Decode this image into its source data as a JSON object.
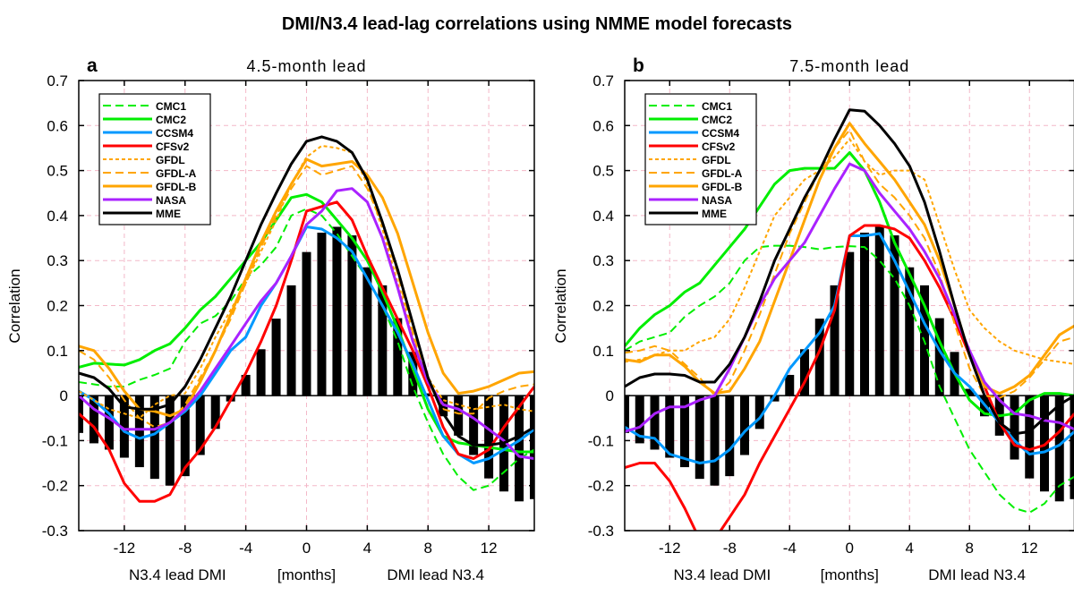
{
  "title": "DMI/N3.4 lead-lag correlations using NMME model forecasts",
  "chart_data": [
    {
      "type": "line",
      "panel_label": "a",
      "subtitle": "4.5-month lead",
      "ylabel": "Correlation",
      "xlabel_left": "N3.4 lead DMI",
      "xlabel_center": "[months]",
      "xlabel_right": "DMI lead N3.4",
      "xlim": [
        -15,
        15
      ],
      "ylim": [
        -0.3,
        0.7
      ],
      "xticks": [
        -12,
        -8,
        -4,
        0,
        4,
        8,
        12
      ],
      "yticks": [
        -0.3,
        -0.2,
        -0.1,
        0,
        0.1,
        0.2,
        0.3,
        0.4,
        0.5,
        0.6,
        0.7
      ],
      "ytick_labels": [
        "-0.3",
        "-0.2",
        "-0.1",
        "0",
        "0.1",
        "0.2",
        "0.3",
        "0.4",
        "0.5",
        "0.6",
        "0.7"
      ],
      "grid": true,
      "legend_position": "top-left",
      "x": [
        -15,
        -14,
        -13,
        -12,
        -11,
        -10,
        -9,
        -8,
        -7,
        -6,
        -5,
        -4,
        -3,
        -2,
        -1,
        0,
        1,
        2,
        3,
        4,
        5,
        6,
        7,
        8,
        9,
        10,
        11,
        12,
        13,
        14,
        15
      ],
      "bars": {
        "color": "#000000",
        "values": [
          -0.083,
          -0.106,
          -0.12,
          -0.138,
          -0.159,
          -0.185,
          -0.2,
          -0.179,
          -0.132,
          -0.074,
          -0.013,
          0.046,
          0.103,
          0.171,
          0.245,
          0.319,
          0.362,
          0.375,
          0.356,
          0.285,
          0.245,
          0.172,
          0.097,
          0.005,
          -0.046,
          -0.089,
          -0.132,
          -0.184,
          -0.213,
          -0.235,
          -0.23
        ]
      },
      "series": [
        {
          "name": "CMC1",
          "color": "#00ee00",
          "style": "dashed",
          "values": [
            0.03,
            0.025,
            0.02,
            0.02,
            0.035,
            0.046,
            0.06,
            0.12,
            0.16,
            0.177,
            0.21,
            0.26,
            0.29,
            0.33,
            0.4,
            0.415,
            0.4,
            0.36,
            0.31,
            0.26,
            0.2,
            0.12,
            0.02,
            -0.06,
            -0.13,
            -0.18,
            -0.21,
            -0.2,
            -0.17,
            -0.14,
            -0.12
          ]
        },
        {
          "name": "CMC2",
          "color": "#00ee00",
          "style": "solid",
          "values": [
            0.063,
            0.072,
            0.07,
            0.068,
            0.08,
            0.1,
            0.115,
            0.15,
            0.19,
            0.22,
            0.26,
            0.3,
            0.34,
            0.39,
            0.44,
            0.447,
            0.43,
            0.39,
            0.35,
            0.3,
            0.23,
            0.15,
            0.06,
            -0.03,
            -0.09,
            -0.105,
            -0.11,
            -0.115,
            -0.12,
            -0.125,
            -0.125
          ]
        },
        {
          "name": "CCSM4",
          "color": "#0099ff",
          "style": "solid",
          "values": [
            0.01,
            -0.01,
            -0.04,
            -0.08,
            -0.095,
            -0.085,
            -0.06,
            -0.035,
            0.0,
            0.05,
            0.1,
            0.13,
            0.2,
            0.25,
            0.31,
            0.375,
            0.37,
            0.35,
            0.32,
            0.26,
            0.2,
            0.14,
            0.07,
            -0.01,
            -0.09,
            -0.13,
            -0.15,
            -0.14,
            -0.12,
            -0.1,
            -0.075
          ]
        },
        {
          "name": "CFSv2",
          "color": "#ff0000",
          "style": "solid",
          "values": [
            -0.04,
            -0.07,
            -0.12,
            -0.195,
            -0.235,
            -0.235,
            -0.22,
            -0.16,
            -0.12,
            -0.07,
            -0.01,
            0.05,
            0.12,
            0.2,
            0.3,
            0.41,
            0.42,
            0.43,
            0.39,
            0.31,
            0.24,
            0.17,
            0.1,
            0.02,
            -0.07,
            -0.13,
            -0.14,
            -0.12,
            -0.07,
            -0.025,
            0.02
          ]
        },
        {
          "name": "GFDL",
          "color": "#ffa500",
          "style": "dotted",
          "values": [
            0.01,
            -0.01,
            -0.03,
            -0.04,
            -0.05,
            -0.02,
            0.0,
            0.005,
            0.06,
            0.13,
            0.19,
            0.25,
            0.32,
            0.39,
            0.47,
            0.53,
            0.555,
            0.55,
            0.54,
            0.47,
            0.37,
            0.25,
            0.13,
            0.04,
            -0.01,
            -0.02,
            -0.03,
            -0.025,
            -0.02,
            -0.03,
            -0.035
          ]
        },
        {
          "name": "GFDL-A",
          "color": "#ffa500",
          "style": "dashed",
          "values": [
            0.1,
            0.08,
            0.04,
            -0.01,
            -0.05,
            -0.07,
            -0.06,
            -0.02,
            0.04,
            0.1,
            0.17,
            0.25,
            0.33,
            0.4,
            0.46,
            0.51,
            0.49,
            0.5,
            0.51,
            0.46,
            0.38,
            0.27,
            0.14,
            0.03,
            -0.03,
            -0.04,
            -0.04,
            -0.005,
            0.01,
            0.02,
            0.025
          ]
        },
        {
          "name": "GFDL-B",
          "color": "#ffa500",
          "style": "solid",
          "values": [
            0.11,
            0.1,
            0.06,
            0.01,
            -0.03,
            -0.035,
            -0.045,
            -0.03,
            0.03,
            0.1,
            0.18,
            0.26,
            0.34,
            0.41,
            0.47,
            0.525,
            0.51,
            0.515,
            0.52,
            0.49,
            0.44,
            0.36,
            0.25,
            0.14,
            0.05,
            0.005,
            0.01,
            0.02,
            0.035,
            0.05,
            0.053
          ]
        },
        {
          "name": "NASA",
          "color": "#aa22ff",
          "style": "solid",
          "values": [
            0.0,
            -0.03,
            -0.05,
            -0.075,
            -0.075,
            -0.075,
            -0.06,
            -0.03,
            0.01,
            0.06,
            0.11,
            0.16,
            0.21,
            0.25,
            0.31,
            0.38,
            0.41,
            0.455,
            0.46,
            0.43,
            0.35,
            0.24,
            0.12,
            0.03,
            -0.02,
            -0.03,
            -0.05,
            -0.075,
            -0.1,
            -0.135,
            -0.14
          ]
        },
        {
          "name": "MME",
          "color": "#000000",
          "style": "solid",
          "values": [
            0.05,
            0.04,
            0.015,
            -0.025,
            -0.03,
            -0.03,
            -0.02,
            0.02,
            0.08,
            0.15,
            0.22,
            0.3,
            0.38,
            0.45,
            0.515,
            0.565,
            0.575,
            0.565,
            0.54,
            0.48,
            0.385,
            0.28,
            0.16,
            0.04,
            -0.04,
            -0.09,
            -0.11,
            -0.11,
            -0.105,
            -0.09,
            -0.07
          ]
        }
      ]
    },
    {
      "type": "line",
      "panel_label": "b",
      "subtitle": "7.5-month lead",
      "ylabel": "Correlation",
      "xlabel_left": "N3.4 lead DMI",
      "xlabel_center": "[months]",
      "xlabel_right": "DMI lead N3.4",
      "xlim": [
        -15,
        15
      ],
      "ylim": [
        -0.3,
        0.7
      ],
      "xticks": [
        -12,
        -8,
        -4,
        0,
        4,
        8,
        12
      ],
      "yticks": [
        -0.3,
        -0.2,
        -0.1,
        0,
        0.1,
        0.2,
        0.3,
        0.4,
        0.5,
        0.6,
        0.7
      ],
      "ytick_labels": [
        "-0.3",
        "-0.2",
        "-0.1",
        "0",
        "0.1",
        "0.2",
        "0.3",
        "0.4",
        "0.5",
        "0.6",
        "0.7"
      ],
      "grid": true,
      "legend_position": "top-left",
      "x": [
        -15,
        -14,
        -13,
        -12,
        -11,
        -10,
        -9,
        -8,
        -7,
        -6,
        -5,
        -4,
        -3,
        -2,
        -1,
        0,
        1,
        2,
        3,
        4,
        5,
        6,
        7,
        8,
        9,
        10,
        11,
        12,
        13,
        14,
        15
      ],
      "bars": {
        "color": "#000000",
        "values": [
          -0.083,
          -0.106,
          -0.12,
          -0.138,
          -0.159,
          -0.185,
          -0.2,
          -0.179,
          -0.132,
          -0.074,
          -0.013,
          0.046,
          0.103,
          0.171,
          0.245,
          0.319,
          0.362,
          0.375,
          0.356,
          0.285,
          0.245,
          0.172,
          0.097,
          0.015,
          -0.046,
          -0.089,
          -0.142,
          -0.184,
          -0.213,
          -0.235,
          -0.23
        ]
      },
      "series": [
        {
          "name": "CMC1",
          "color": "#00ee00",
          "style": "dashed",
          "values": [
            0.1,
            0.12,
            0.13,
            0.14,
            0.175,
            0.2,
            0.22,
            0.25,
            0.3,
            0.33,
            0.333,
            0.333,
            0.33,
            0.325,
            0.33,
            0.332,
            0.33,
            0.3,
            0.26,
            0.2,
            0.12,
            0.02,
            -0.05,
            -0.12,
            -0.17,
            -0.22,
            -0.25,
            -0.26,
            -0.24,
            -0.2,
            -0.18
          ]
        },
        {
          "name": "CMC2",
          "color": "#00ee00",
          "style": "solid",
          "values": [
            0.11,
            0.15,
            0.18,
            0.2,
            0.23,
            0.25,
            0.29,
            0.33,
            0.37,
            0.42,
            0.47,
            0.5,
            0.505,
            0.505,
            0.505,
            0.54,
            0.5,
            0.43,
            0.34,
            0.27,
            0.2,
            0.12,
            0.05,
            -0.01,
            -0.04,
            -0.045,
            -0.04,
            -0.01,
            0.005,
            0.005,
            0.0
          ]
        },
        {
          "name": "CCSM4",
          "color": "#0099ff",
          "style": "solid",
          "values": [
            -0.07,
            -0.09,
            -0.095,
            -0.13,
            -0.14,
            -0.15,
            -0.145,
            -0.12,
            -0.08,
            -0.05,
            0.0,
            0.06,
            0.1,
            0.14,
            0.2,
            0.355,
            0.355,
            0.36,
            0.3,
            0.23,
            0.16,
            0.1,
            0.05,
            0.02,
            -0.02,
            -0.06,
            -0.1,
            -0.13,
            -0.125,
            -0.11,
            -0.08
          ]
        },
        {
          "name": "CFSv2",
          "color": "#ff0000",
          "style": "solid",
          "values": [
            -0.16,
            -0.15,
            -0.15,
            -0.19,
            -0.25,
            -0.32,
            -0.32,
            -0.27,
            -0.22,
            -0.15,
            -0.09,
            -0.03,
            0.03,
            0.1,
            0.19,
            0.355,
            0.378,
            0.378,
            0.37,
            0.35,
            0.3,
            0.24,
            0.17,
            0.09,
            0.02,
            -0.06,
            -0.11,
            -0.12,
            -0.11,
            -0.08,
            -0.04
          ]
        },
        {
          "name": "GFDL",
          "color": "#ffa500",
          "style": "dotted",
          "values": [
            0.075,
            0.08,
            0.09,
            0.1,
            0.1,
            0.12,
            0.13,
            0.17,
            0.24,
            0.32,
            0.4,
            0.44,
            0.48,
            0.5,
            0.53,
            0.57,
            0.52,
            0.49,
            0.5,
            0.5,
            0.48,
            0.38,
            0.28,
            0.19,
            0.15,
            0.12,
            0.1,
            0.09,
            0.08,
            0.075,
            0.07
          ]
        },
        {
          "name": "GFDL-A",
          "color": "#ffa500",
          "style": "dashed",
          "values": [
            0.095,
            0.1,
            0.11,
            0.1,
            0.07,
            0.04,
            0.0,
            0.03,
            0.1,
            0.18,
            0.27,
            0.36,
            0.43,
            0.5,
            0.55,
            0.59,
            0.52,
            0.47,
            0.44,
            0.4,
            0.35,
            0.27,
            0.16,
            0.06,
            0.0,
            -0.005,
            0.01,
            0.04,
            0.08,
            0.12,
            0.13
          ]
        },
        {
          "name": "GFDL-B",
          "color": "#ffa500",
          "style": "solid",
          "values": [
            0.08,
            0.075,
            0.09,
            0.09,
            0.065,
            0.03,
            0.005,
            0.01,
            0.06,
            0.12,
            0.21,
            0.3,
            0.39,
            0.48,
            0.55,
            0.605,
            0.56,
            0.52,
            0.48,
            0.43,
            0.38,
            0.3,
            0.2,
            0.09,
            0.02,
            0.005,
            0.02,
            0.045,
            0.09,
            0.135,
            0.155
          ]
        },
        {
          "name": "NASA",
          "color": "#aa22ff",
          "style": "solid",
          "values": [
            -0.08,
            -0.07,
            -0.04,
            -0.025,
            -0.025,
            -0.01,
            0.0,
            0.06,
            0.13,
            0.2,
            0.26,
            0.3,
            0.34,
            0.4,
            0.46,
            0.515,
            0.5,
            0.45,
            0.41,
            0.37,
            0.32,
            0.26,
            0.18,
            0.1,
            0.03,
            -0.01,
            -0.04,
            -0.045,
            -0.055,
            -0.06,
            -0.075
          ]
        },
        {
          "name": "MME",
          "color": "#000000",
          "style": "solid",
          "values": [
            0.02,
            0.04,
            0.048,
            0.048,
            0.045,
            0.03,
            0.03,
            0.07,
            0.13,
            0.21,
            0.3,
            0.37,
            0.44,
            0.5,
            0.57,
            0.635,
            0.632,
            0.6,
            0.56,
            0.51,
            0.43,
            0.32,
            0.2,
            0.09,
            0.0,
            -0.06,
            -0.085,
            -0.08,
            -0.05,
            -0.02,
            0.0
          ]
        }
      ]
    }
  ]
}
